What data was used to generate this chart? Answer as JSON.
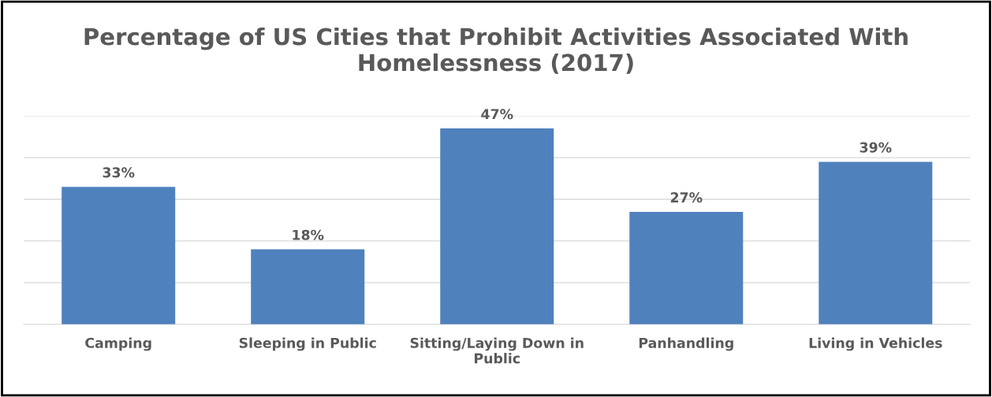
{
  "chart_data": {
    "type": "bar",
    "title": "Percentage of US Cities that Prohibit Activities Associated With Homelessness (2017)",
    "categories": [
      "Camping",
      "Sleeping in Public",
      "Sitting/Laying Down in Public",
      "Panhandling",
      "Living in Vehicles"
    ],
    "values": [
      33,
      18,
      47,
      27,
      39
    ],
    "value_labels": [
      "33%",
      "18%",
      "47%",
      "27%",
      "39%"
    ],
    "color": "#4f81bd",
    "ylim": [
      0,
      50
    ],
    "yticks": [
      0,
      10,
      20,
      30,
      40,
      50
    ],
    "tick_labels": "x",
    "grid": "y"
  }
}
